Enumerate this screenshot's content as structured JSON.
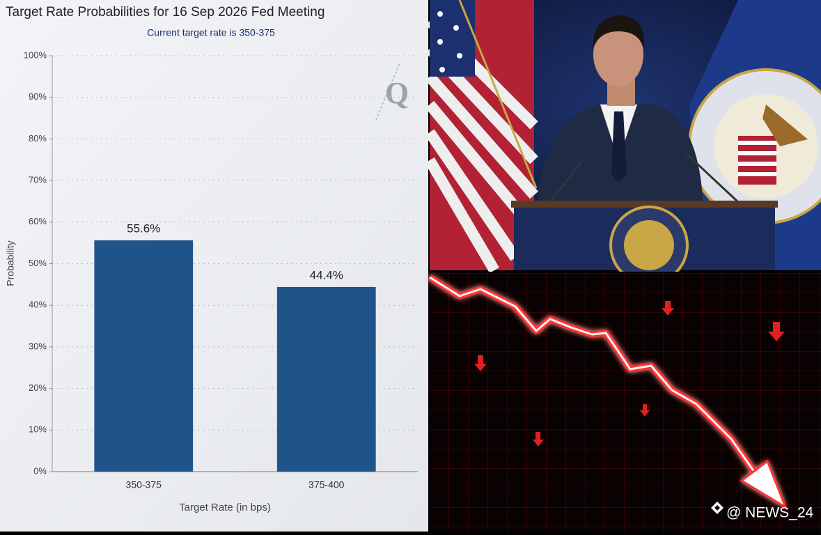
{
  "chart_data": {
    "type": "bar",
    "title": "Target Rate Probabilities for 16 Sep 2026 Fed Meeting",
    "subtitle": "Current target rate is 350-375",
    "x_label": "Target Rate (in bps)",
    "y_label": "Probability",
    "categories": [
      "350-375",
      "375-400"
    ],
    "values": [
      55.6,
      44.4
    ],
    "value_labels": [
      "55.6%",
      "44.4%"
    ],
    "color": "#1f5489",
    "ylim": [
      0,
      100
    ],
    "yticks": [
      {
        "value": 0,
        "label": "0%"
      },
      {
        "value": 10,
        "label": "10%"
      },
      {
        "value": 20,
        "label": "20%"
      },
      {
        "value": 30,
        "label": "30%"
      },
      {
        "value": 40,
        "label": "40%"
      },
      {
        "value": 50,
        "label": "50%"
      },
      {
        "value": 60,
        "label": "60%"
      },
      {
        "value": 70,
        "label": "70%"
      },
      {
        "value": 80,
        "label": "80%"
      },
      {
        "value": 90,
        "label": "90%"
      },
      {
        "value": 100,
        "label": "100%"
      }
    ],
    "grid": true
  },
  "overlay": {
    "logo": "Q",
    "watermark": "@ NEWS_24"
  }
}
